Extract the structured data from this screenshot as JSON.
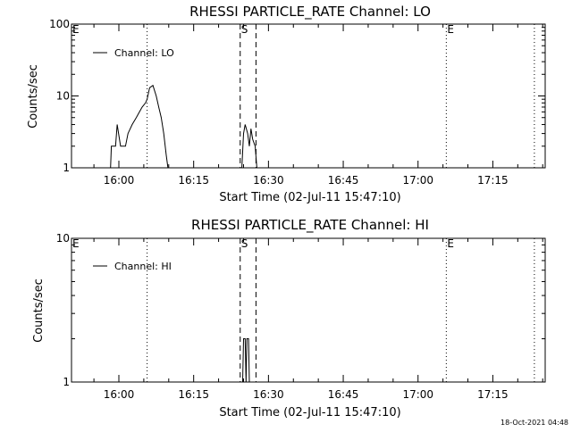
{
  "footer": {
    "timestamp": "18-Oct-2021 04:48"
  },
  "chart_data": [
    {
      "type": "line",
      "title": "RHESSI PARTICLE_RATE Channel: LO",
      "xlabel": "Start Time (02-Jul-11 15:47:10)",
      "ylabel": "Counts/sec",
      "y_scale": "log",
      "ylim": [
        1,
        100
      ],
      "y_ticks": [
        {
          "value": 1,
          "label": "1"
        },
        {
          "value": 10,
          "label": "10"
        },
        {
          "value": 100,
          "label": "100"
        }
      ],
      "xlim": [
        "15:50:30",
        "17:25:30"
      ],
      "x_ticks": [
        "16:00",
        "16:15",
        "16:30",
        "16:45",
        "17:00",
        "17:15"
      ],
      "legend": {
        "label": "Channel: LO",
        "position": "top-left"
      },
      "grid": false,
      "markers": [
        {
          "label": "E",
          "time": "15:50:30",
          "style": "dotted"
        },
        {
          "label": "",
          "time": "16:05:40",
          "style": "dotted"
        },
        {
          "label": "S",
          "time": "16:24:20",
          "style": "dashed"
        },
        {
          "label": "",
          "time": "16:27:30",
          "style": "dashed"
        },
        {
          "label": "E",
          "time": "17:05:40",
          "style": "dotted"
        },
        {
          "label": "",
          "time": "17:23:20",
          "style": "dotted"
        }
      ],
      "series": [
        {
          "name": "Channel: LO",
          "segments": [
            [
              [
                "15:58:20",
                1
              ],
              [
                "15:58:30",
                2
              ],
              [
                "15:59:20",
                2
              ],
              [
                "15:59:40",
                4
              ],
              [
                "16:00:20",
                2
              ],
              [
                "16:01:20",
                2
              ],
              [
                "16:01:50",
                3
              ],
              [
                "16:02:40",
                4
              ],
              [
                "16:03:30",
                5
              ],
              [
                "16:04:40",
                7
              ],
              [
                "16:05:20",
                8
              ],
              [
                "16:05:40",
                9
              ],
              [
                "16:06:10",
                13
              ],
              [
                "16:06:50",
                14
              ],
              [
                "16:07:30",
                10
              ],
              [
                "16:08:00",
                7
              ],
              [
                "16:08:30",
                5
              ],
              [
                "16:09:00",
                3
              ],
              [
                "16:09:30",
                1.5
              ],
              [
                "16:09:50",
                1
              ]
            ],
            [
              [
                "16:24:40",
                1
              ],
              [
                "16:25:00",
                3
              ],
              [
                "16:25:20",
                4
              ],
              [
                "16:25:50",
                3
              ],
              [
                "16:26:10",
                2
              ],
              [
                "16:26:30",
                3.5
              ],
              [
                "16:26:50",
                2.5
              ],
              [
                "16:27:20",
                2
              ],
              [
                "16:27:40",
                1
              ]
            ]
          ]
        }
      ]
    },
    {
      "type": "line",
      "title": "RHESSI PARTICLE_RATE Channel: HI",
      "xlabel": "Start Time (02-Jul-11 15:47:10)",
      "ylabel": "Counts/sec",
      "y_scale": "log",
      "ylim": [
        1,
        10
      ],
      "y_ticks": [
        {
          "value": 1,
          "label": "1"
        },
        {
          "value": 10,
          "label": "10"
        }
      ],
      "xlim": [
        "15:50:30",
        "17:25:30"
      ],
      "x_ticks": [
        "16:00",
        "16:15",
        "16:30",
        "16:45",
        "17:00",
        "17:15"
      ],
      "legend": {
        "label": "Channel: HI",
        "position": "top-left"
      },
      "grid": false,
      "markers": [
        {
          "label": "E",
          "time": "15:50:30",
          "style": "dotted"
        },
        {
          "label": "",
          "time": "16:05:40",
          "style": "dotted"
        },
        {
          "label": "S",
          "time": "16:24:20",
          "style": "dashed"
        },
        {
          "label": "",
          "time": "16:27:30",
          "style": "dashed"
        },
        {
          "label": "E",
          "time": "17:05:40",
          "style": "dotted"
        },
        {
          "label": "",
          "time": "17:23:20",
          "style": "dotted"
        }
      ],
      "series": [
        {
          "name": "Channel: HI",
          "segments": [
            [
              [
                "16:24:50",
                1
              ],
              [
                "16:25:00",
                2
              ],
              [
                "16:25:20",
                2
              ],
              [
                "16:25:30",
                1
              ],
              [
                "16:25:40",
                2
              ],
              [
                "16:26:00",
                2
              ],
              [
                "16:26:10",
                1
              ]
            ]
          ]
        }
      ]
    }
  ]
}
